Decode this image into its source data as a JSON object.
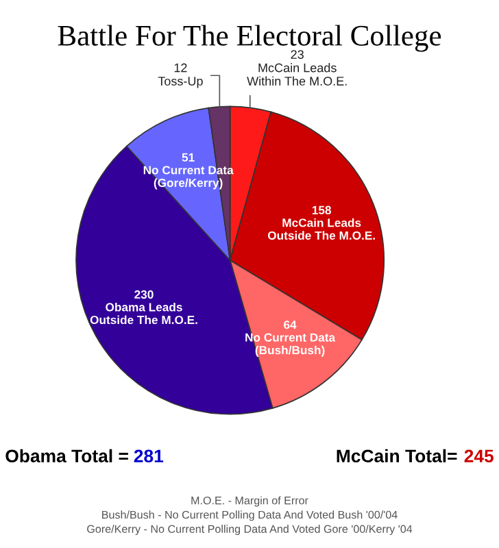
{
  "chart_data": {
    "type": "pie",
    "title": "Battle For The Electoral College",
    "categories": [
      "McCain Leads\nWithin The M.O.E.",
      "McCain Leads\nOutside The M.O.E.",
      "No Current Data\n(Bush/Bush)",
      "Obama Leads\nOutside The M.O.E.",
      "No Current Data\n(Gore/Kerry)",
      "Toss-Up"
    ],
    "values": [
      23,
      158,
      64,
      230,
      51,
      12
    ],
    "colors": [
      "#ff1a1a",
      "#cc0000",
      "#ff6666",
      "#330099",
      "#6666ff",
      "#663366"
    ],
    "data_labels": true,
    "annotations": [
      "Obama Total = 281",
      "McCain Total= 245",
      "M.O.E. - Margin of Error",
      "Bush/Bush - No Current Polling Data And Voted Bush '00/'04",
      "Gore/Kerry - No Current Polling Data And Voted Gore '00/Kerry '04"
    ]
  }
}
